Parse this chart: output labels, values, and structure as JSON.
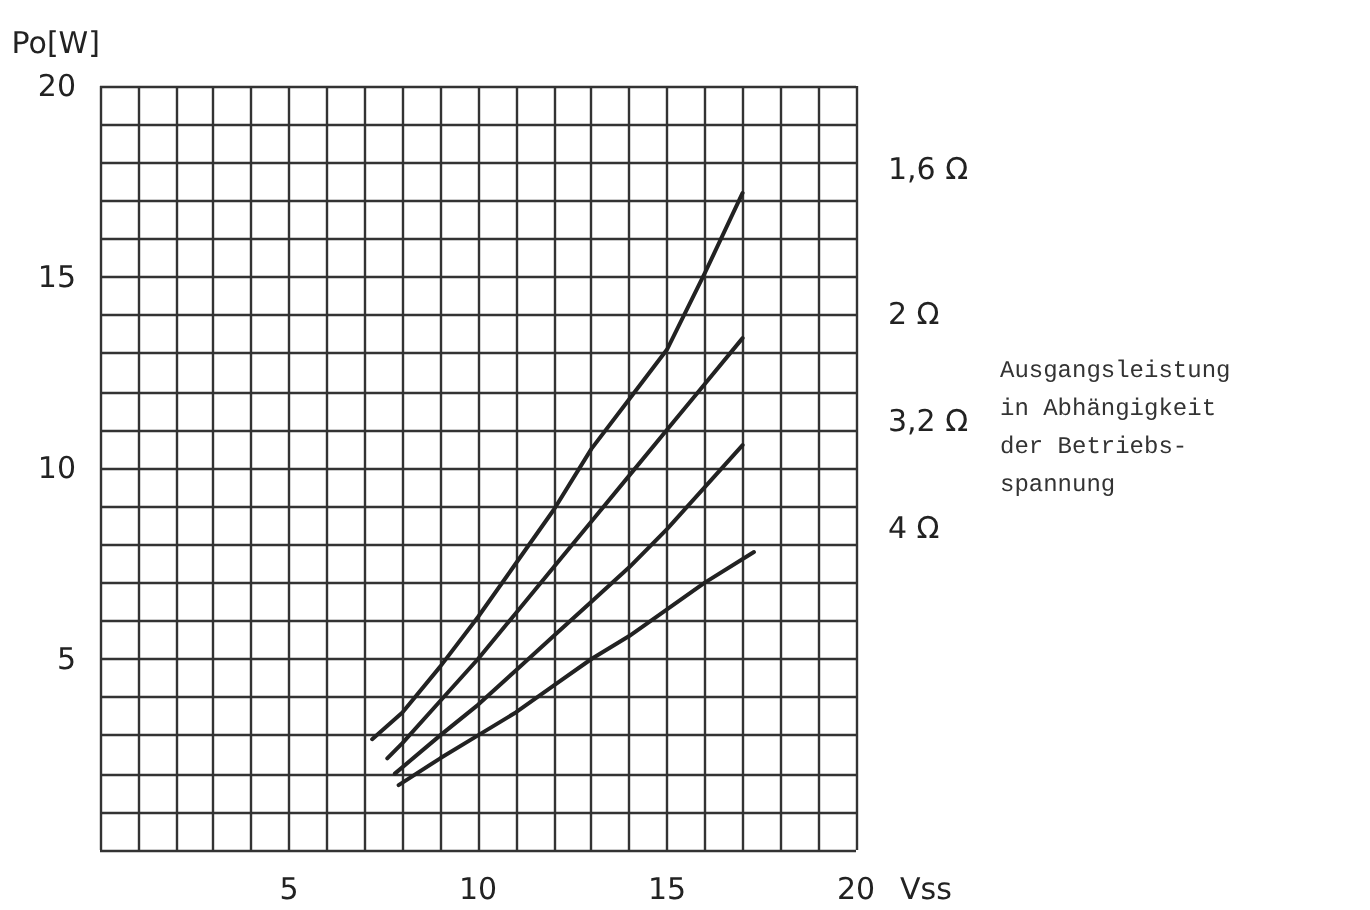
{
  "chart_data": {
    "type": "line",
    "xlabel": "Vss",
    "ylabel": "Po[W]",
    "xlim": [
      0,
      20
    ],
    "ylim": [
      0,
      20
    ],
    "xticks": [
      {
        "value": 0,
        "label": null
      },
      {
        "value": 1,
        "label": null
      },
      {
        "value": 2,
        "label": null
      },
      {
        "value": 3,
        "label": null
      },
      {
        "value": 4,
        "label": null
      },
      5,
      {
        "value": 6,
        "label": null
      },
      {
        "value": 7,
        "label": null
      },
      {
        "value": 8,
        "label": null
      },
      {
        "value": 9,
        "label": null
      },
      10,
      {
        "value": 11,
        "label": null
      },
      {
        "value": 12,
        "label": null
      },
      {
        "value": 13,
        "label": null
      },
      {
        "value": 14,
        "label": null
      },
      15,
      {
        "value": 16,
        "label": null
      },
      {
        "value": 17,
        "label": null
      },
      {
        "value": 18,
        "label": null
      },
      {
        "value": 19,
        "label": null
      },
      20
    ],
    "yticks": [
      {
        "value": 0,
        "label": null
      },
      {
        "value": 1,
        "label": null
      },
      {
        "value": 2,
        "label": null
      },
      {
        "value": 3,
        "label": null
      },
      {
        "value": 4,
        "label": null
      },
      5,
      {
        "value": 6,
        "label": null
      },
      {
        "value": 7,
        "label": null
      },
      {
        "value": 8,
        "label": null
      },
      {
        "value": 9,
        "label": null
      },
      10,
      {
        "value": 11,
        "label": null
      },
      {
        "value": 12,
        "label": null
      },
      {
        "value": 13,
        "label": null
      },
      {
        "value": 14,
        "label": null
      },
      15,
      {
        "value": 16,
        "label": null
      },
      {
        "value": 17,
        "label": null
      },
      {
        "value": 18,
        "label": null
      },
      {
        "value": 19,
        "label": null
      },
      20
    ],
    "grid": true,
    "legend": false,
    "marker": "none",
    "line_style": "solid",
    "series": [
      {
        "name": "1,6 Ω",
        "color": "#222222",
        "x": [
          7.2,
          8,
          9,
          10,
          11,
          12,
          13,
          14,
          15,
          16,
          17
        ],
        "values": [
          2.9,
          3.6,
          4.8,
          6.1,
          7.5,
          8.9,
          10.5,
          11.8,
          13.1,
          15.1,
          17.2
        ]
      },
      {
        "name": "2 Ω",
        "color": "#222222",
        "x": [
          7.6,
          8,
          9,
          10,
          11,
          12,
          13,
          14,
          15,
          16,
          17
        ],
        "values": [
          2.4,
          2.8,
          3.9,
          5.0,
          6.2,
          7.4,
          8.6,
          9.8,
          11.0,
          12.2,
          13.4
        ]
      },
      {
        "name": "3,2 Ω",
        "color": "#222222",
        "x": [
          7.8,
          9,
          10,
          11,
          12,
          13,
          14,
          15,
          16,
          17
        ],
        "values": [
          2.0,
          3.0,
          3.8,
          4.7,
          5.6,
          6.5,
          7.4,
          8.4,
          9.5,
          10.6
        ]
      },
      {
        "name": "4 Ω",
        "color": "#222222",
        "x": [
          7.9,
          9,
          10,
          11,
          12,
          13,
          14,
          15,
          16,
          17.3
        ],
        "values": [
          1.7,
          2.4,
          3.0,
          3.6,
          4.3,
          5.0,
          5.6,
          6.3,
          7.0,
          7.8
        ]
      }
    ],
    "annotations": [
      "Ausgangsleistung\nin Abhängigkeit\nder Betriebs-\nspannung"
    ]
  }
}
